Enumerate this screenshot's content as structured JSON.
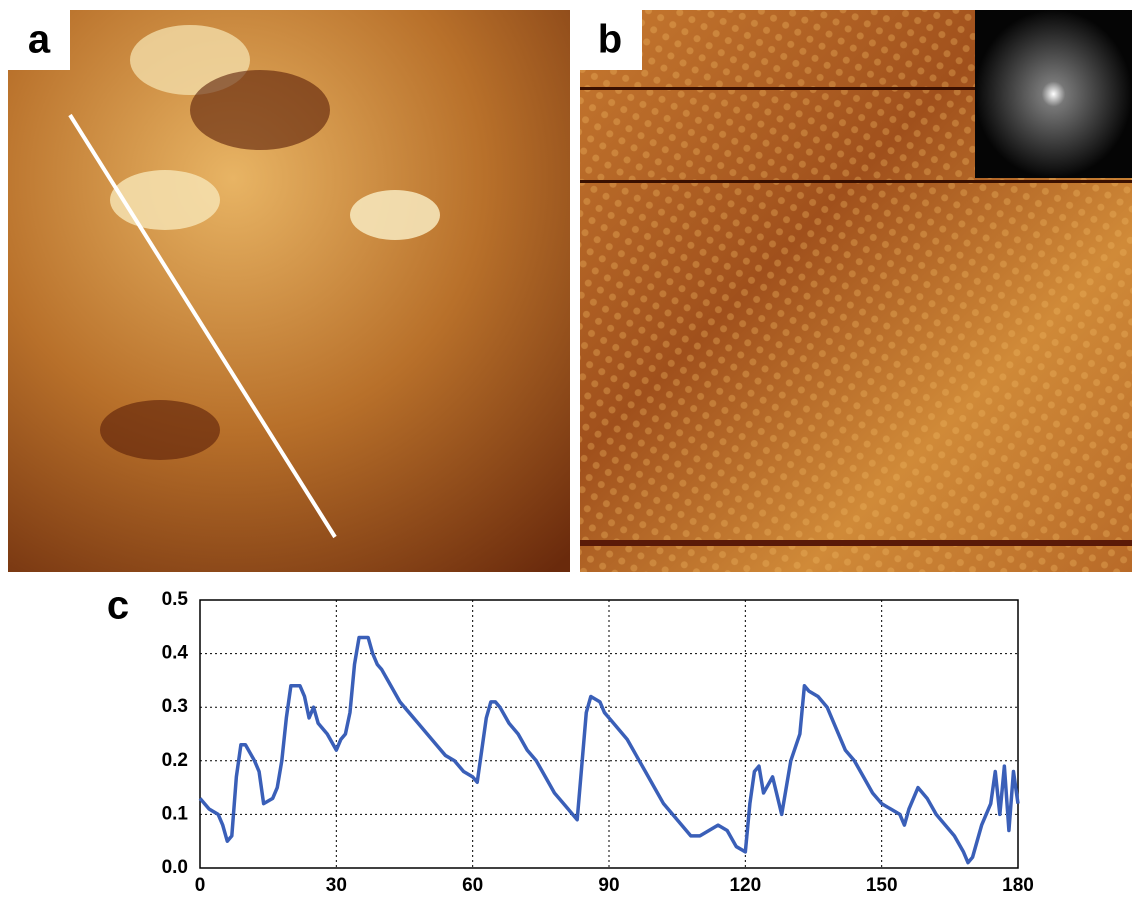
{
  "images": [
    {
      "label": "a"
    },
    {
      "label": "b"
    }
  ],
  "chart_data": {
    "type": "line",
    "panel_label": "c",
    "x": [
      0,
      2,
      4,
      5,
      6,
      7,
      8,
      9,
      10,
      12,
      13,
      14,
      16,
      17,
      18,
      19,
      20,
      22,
      23,
      24,
      25,
      26,
      28,
      30,
      31,
      32,
      33,
      34,
      35,
      37,
      38,
      39,
      40,
      42,
      44,
      46,
      48,
      50,
      52,
      54,
      56,
      58,
      60,
      61,
      62,
      63,
      64,
      65,
      66,
      68,
      70,
      72,
      74,
      76,
      78,
      80,
      82,
      83,
      84,
      85,
      86,
      88,
      89,
      90,
      92,
      94,
      96,
      98,
      100,
      102,
      104,
      106,
      108,
      110,
      112,
      114,
      116,
      118,
      120,
      121,
      122,
      123,
      124,
      126,
      128,
      130,
      132,
      133,
      134,
      136,
      138,
      140,
      142,
      144,
      146,
      148,
      150,
      152,
      154,
      155,
      156,
      158,
      160,
      162,
      164,
      166,
      168,
      169,
      170,
      172,
      174,
      175,
      176,
      177,
      178,
      179,
      180
    ],
    "series": [
      {
        "color": "#3a5fb8",
        "values": [
          0.13,
          0.11,
          0.1,
          0.08,
          0.05,
          0.06,
          0.17,
          0.23,
          0.23,
          0.2,
          0.18,
          0.12,
          0.13,
          0.15,
          0.2,
          0.28,
          0.34,
          0.34,
          0.32,
          0.28,
          0.3,
          0.27,
          0.25,
          0.22,
          0.24,
          0.25,
          0.29,
          0.38,
          0.43,
          0.43,
          0.4,
          0.38,
          0.37,
          0.34,
          0.31,
          0.29,
          0.27,
          0.25,
          0.23,
          0.21,
          0.2,
          0.18,
          0.17,
          0.16,
          0.22,
          0.28,
          0.31,
          0.31,
          0.3,
          0.27,
          0.25,
          0.22,
          0.2,
          0.17,
          0.14,
          0.12,
          0.1,
          0.09,
          0.19,
          0.29,
          0.32,
          0.31,
          0.29,
          0.28,
          0.26,
          0.24,
          0.21,
          0.18,
          0.15,
          0.12,
          0.1,
          0.08,
          0.06,
          0.06,
          0.07,
          0.08,
          0.07,
          0.04,
          0.03,
          0.12,
          0.18,
          0.19,
          0.14,
          0.17,
          0.1,
          0.2,
          0.25,
          0.34,
          0.33,
          0.32,
          0.3,
          0.26,
          0.22,
          0.2,
          0.17,
          0.14,
          0.12,
          0.11,
          0.1,
          0.08,
          0.11,
          0.15,
          0.13,
          0.1,
          0.08,
          0.06,
          0.03,
          0.01,
          0.02,
          0.08,
          0.12,
          0.18,
          0.1,
          0.19,
          0.07,
          0.18,
          0.12
        ]
      }
    ],
    "xlim": [
      0,
      180
    ],
    "xticks": [
      0,
      30,
      60,
      90,
      120,
      150,
      180
    ],
    "ylim": [
      0,
      0.5
    ],
    "yticks": [
      {
        "value": 0,
        "label": "0.0"
      },
      0.1,
      0.2,
      0.3,
      0.4,
      0.5
    ],
    "grid": true
  }
}
